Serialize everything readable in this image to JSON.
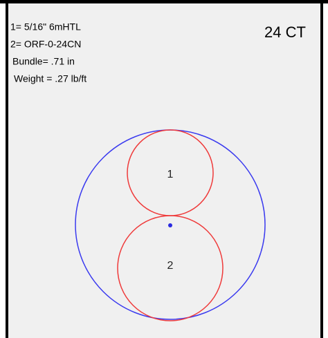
{
  "info": [
    "1= 5/16\" 6mHTL",
    "2= ORF-0-24CN",
    "Bundle= .71 in",
    "Weight = .27 lb/ft"
  ],
  "title": "24 CT",
  "circles": [
    {
      "label": "1"
    },
    {
      "label": "2"
    }
  ]
}
